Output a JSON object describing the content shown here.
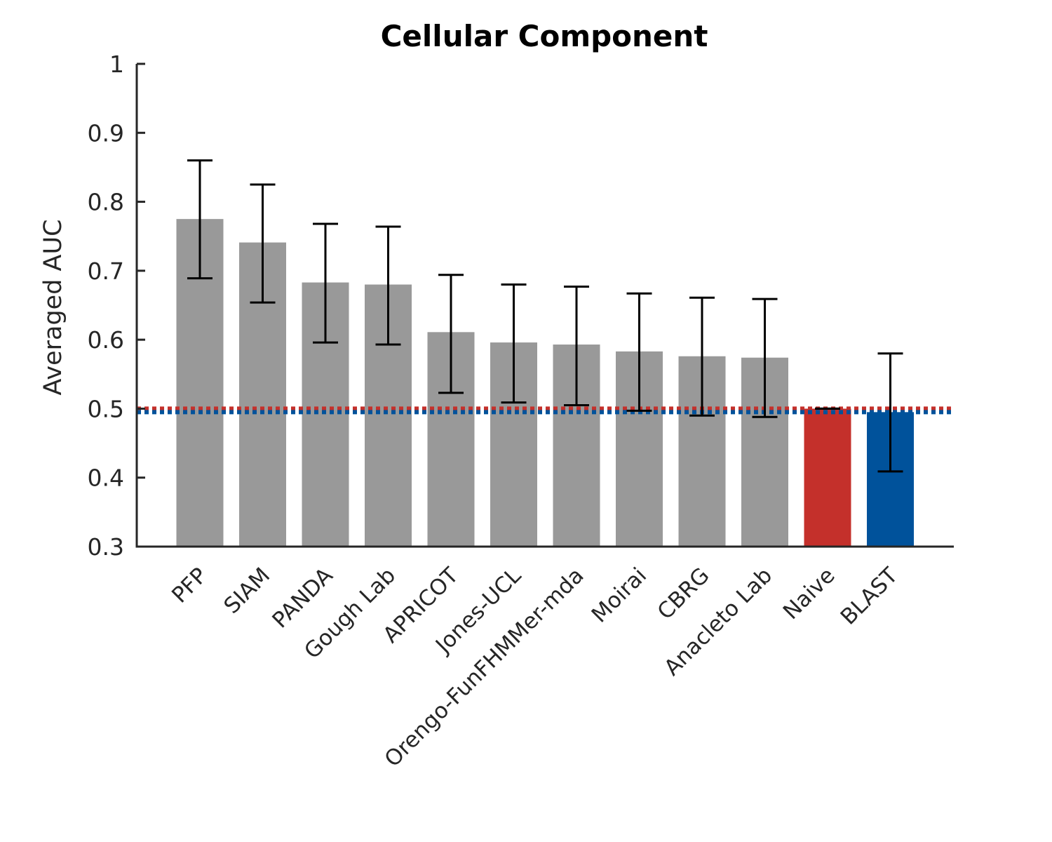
{
  "chart_data": {
    "type": "bar",
    "title": "Cellular Component",
    "xlabel": "",
    "ylabel": "Averaged AUC",
    "ylim": [
      0.3,
      1
    ],
    "yticks": [
      "0.3",
      "0.4",
      "0.5",
      "0.6",
      "0.7",
      "0.8",
      "0.9",
      "1"
    ],
    "grid": false,
    "categories": [
      "PFP",
      "SIAM",
      "PANDA",
      "Gough Lab",
      "APRICOT",
      "Jones-UCL",
      "Orengo-FunFHMMer-mda",
      "Moirai",
      "CBRG",
      "Anacleto Lab",
      "Naive",
      "BLAST"
    ],
    "values": [
      0.775,
      0.741,
      0.683,
      0.68,
      0.611,
      0.596,
      0.593,
      0.583,
      0.576,
      0.574,
      0.5,
      0.495
    ],
    "error_low": [
      0.689,
      0.654,
      0.596,
      0.593,
      0.523,
      0.509,
      0.505,
      0.497,
      0.49,
      0.488,
      0.5,
      0.409
    ],
    "error_high": [
      0.86,
      0.825,
      0.768,
      0.764,
      0.694,
      0.68,
      0.677,
      0.667,
      0.661,
      0.659,
      0.5,
      0.58
    ],
    "bar_colors": [
      "#999999",
      "#999999",
      "#999999",
      "#999999",
      "#999999",
      "#999999",
      "#999999",
      "#999999",
      "#999999",
      "#999999",
      "#c4302b",
      "#00529b"
    ],
    "reference_lines": [
      {
        "value": 0.5,
        "color": "#c4302b",
        "style": "dotted"
      },
      {
        "value": 0.495,
        "color": "#00529b",
        "style": "dotted"
      }
    ]
  }
}
